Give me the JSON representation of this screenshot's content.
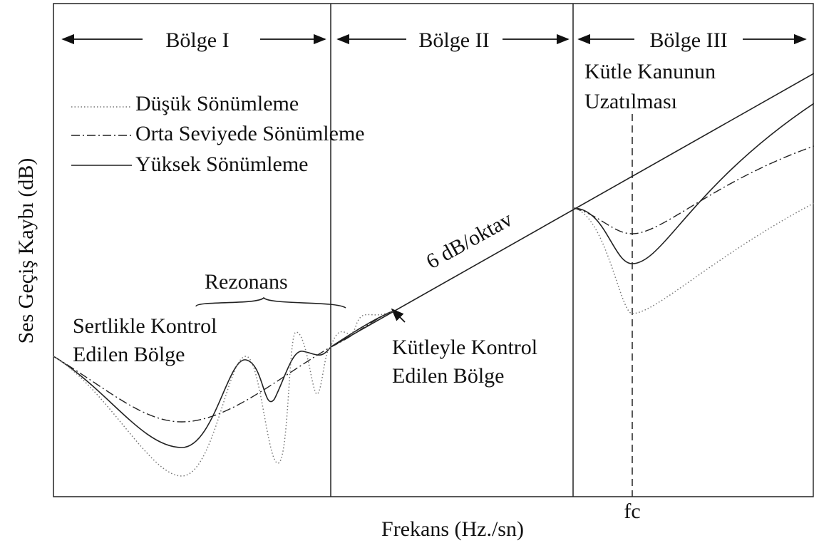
{
  "regions": [
    "Bölge I",
    "Bölge II",
    "Bölge III"
  ],
  "legend": [
    "Düşük Sönümleme",
    "Orta Seviyede Sönümleme",
    "Yüksek Sönümleme"
  ],
  "annotations": {
    "mass_law_extension": [
      "Kütle Kanunun",
      "Uzatılması"
    ],
    "slope": "6 dB/oktav",
    "resonance": "Rezonans",
    "stiffness_region": [
      "Sertlikle Kontrol",
      "Edilen Bölge"
    ],
    "mass_region": [
      "Kütleyle Kontrol",
      "Edilen Bölge"
    ]
  },
  "axes": {
    "y_label": "Ses Geçiş Kaybı (dB)",
    "x_label": "Frekans (Hz./sn)",
    "fc": "fc"
  }
}
